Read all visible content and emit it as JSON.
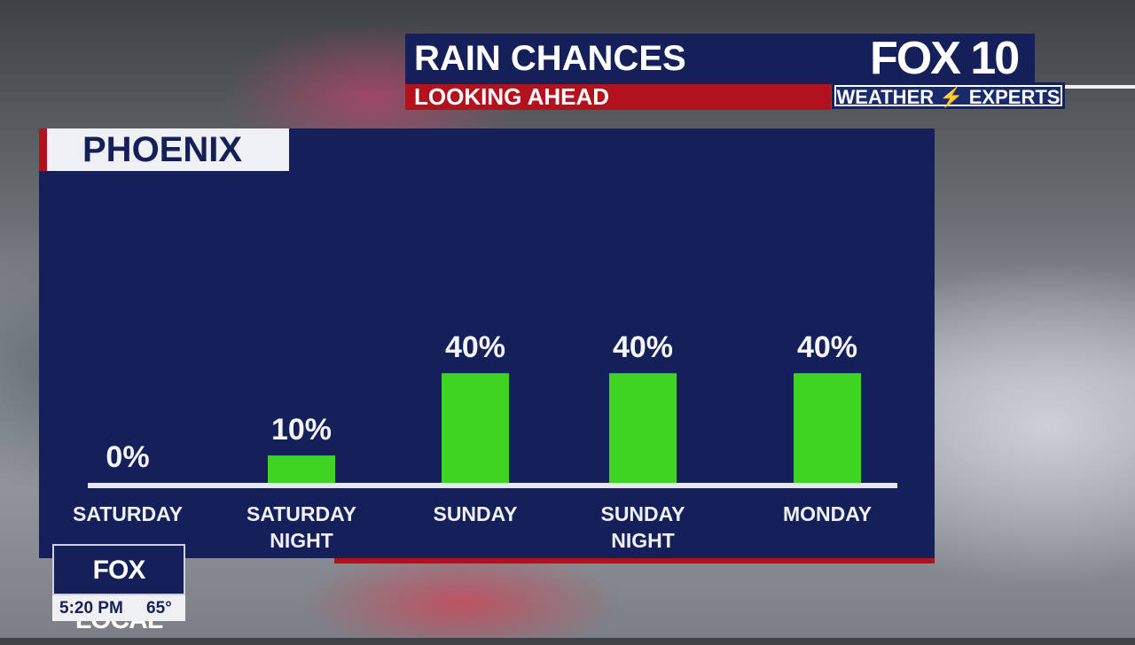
{
  "header": {
    "title": "RAIN CHANCES",
    "subtitle": "LOOKING AHEAD"
  },
  "logo": {
    "brand": "FOX 10",
    "tagline": "WEATHER ⚡ EXPERTS"
  },
  "location": "PHOENIX",
  "bug": {
    "brand": "FOX LOCAL",
    "time": "5:20 PM",
    "temp": "65°"
  },
  "colors": {
    "panel": "#15205a",
    "accent_red": "#b1121d",
    "bar": "#3fd422",
    "baseline": "#e6e8ec"
  },
  "chart_data": {
    "type": "bar",
    "categories": [
      [
        "SATURDAY"
      ],
      [
        "SATURDAY",
        "NIGHT"
      ],
      [
        "SUNDAY"
      ],
      [
        "SUNDAY",
        "NIGHT"
      ],
      [
        "MONDAY"
      ]
    ],
    "values": [
      0,
      10,
      40,
      40,
      40
    ],
    "value_labels": [
      "0%",
      "10%",
      "40%",
      "40%",
      "40%"
    ],
    "unit": "%",
    "ylim": [
      0,
      100
    ],
    "grid": false,
    "legend": "none"
  }
}
